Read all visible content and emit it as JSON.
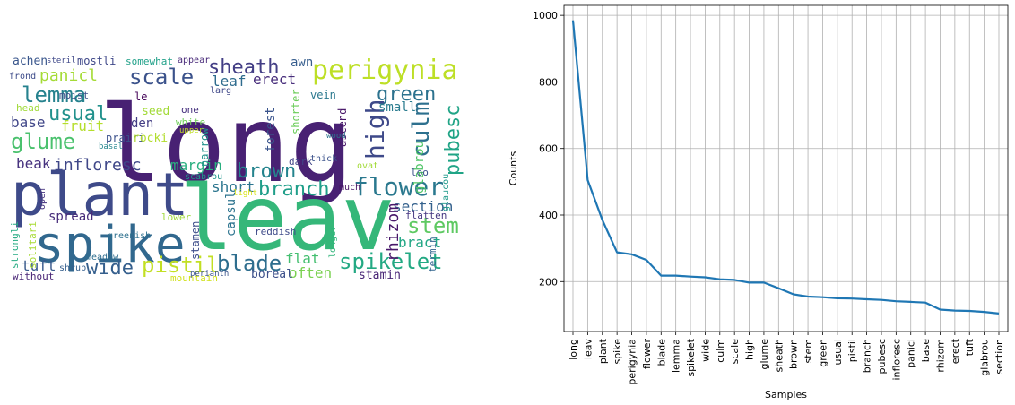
{
  "chart_data": [
    {
      "type": "wordcloud",
      "words": [
        {
          "text": "long",
          "color": "#482173"
        },
        {
          "text": "leav",
          "color": "#35b779"
        },
        {
          "text": "plant",
          "color": "#3e4a89"
        },
        {
          "text": "spike",
          "color": "#31688e"
        },
        {
          "text": "perigynia",
          "color": "#bddf26"
        },
        {
          "text": "sheath",
          "color": "#433e85"
        },
        {
          "text": "scale",
          "color": "#3b528b"
        },
        {
          "text": "lemma",
          "color": "#26828e"
        },
        {
          "text": "green",
          "color": "#2c728e"
        },
        {
          "text": "usual",
          "color": "#21918c"
        },
        {
          "text": "glume",
          "color": "#4ac16d"
        },
        {
          "text": "high",
          "color": "#3e4989"
        },
        {
          "text": "culm",
          "color": "#2d708e"
        },
        {
          "text": "pubesc",
          "color": "#20a486"
        },
        {
          "text": "flower",
          "color": "#2a788e"
        },
        {
          "text": "brown",
          "color": "#25848e"
        },
        {
          "text": "branch",
          "color": "#1f9e89"
        },
        {
          "text": "infloresc",
          "color": "#3f4788"
        },
        {
          "text": "margin",
          "color": "#29af7f"
        },
        {
          "text": "stem",
          "color": "#5ec962"
        },
        {
          "text": "section",
          "color": "#34618d"
        },
        {
          "text": "blade",
          "color": "#2e6e8e"
        },
        {
          "text": "spikelet",
          "color": "#23a983"
        },
        {
          "text": "pistil",
          "color": "#c2df23"
        },
        {
          "text": "wide",
          "color": "#355f8d"
        },
        {
          "text": "tuft",
          "color": "#38598c"
        },
        {
          "text": "panicl",
          "color": "#a5db36"
        },
        {
          "text": "base",
          "color": "#404688"
        },
        {
          "text": "beak",
          "color": "#46327e"
        },
        {
          "text": "erect",
          "color": "#472d7b"
        },
        {
          "text": "leaf",
          "color": "#2f6c8e"
        },
        {
          "text": "fruit",
          "color": "#b5de2b"
        },
        {
          "text": "bract",
          "color": "#22a785"
        },
        {
          "text": "flat",
          "color": "#44bf70"
        },
        {
          "text": "often",
          "color": "#7ad151"
        },
        {
          "text": "short",
          "color": "#2b758e"
        },
        {
          "text": "forest",
          "color": "#3a548c"
        },
        {
          "text": "rhizom",
          "color": "#48186a"
        },
        {
          "text": "glabrou",
          "color": "#52c569"
        },
        {
          "text": "slender",
          "color": "#481f70"
        },
        {
          "text": "awn",
          "color": "#365d8d"
        },
        {
          "text": "small",
          "color": "#297b8e"
        },
        {
          "text": "capsul",
          "color": "#2c738e"
        },
        {
          "text": "spread",
          "color": "#472c7a"
        },
        {
          "text": "stamin",
          "color": "#482576"
        },
        {
          "text": "boreal",
          "color": "#3c4f8a"
        },
        {
          "text": "achen",
          "color": "#39568c"
        },
        {
          "text": "den",
          "color": "#433d84"
        },
        {
          "text": "strongli",
          "color": "#25ab82"
        },
        {
          "text": "solitari",
          "color": "#a8db34"
        },
        {
          "text": "mountain",
          "color": "#d0e11c"
        },
        {
          "text": "prairi",
          "color": "#3b518b"
        },
        {
          "text": "without",
          "color": "#482475"
        },
        {
          "text": "stamen",
          "color": "#3d4d8a"
        },
        {
          "text": "narrow",
          "color": "#20928c"
        },
        {
          "text": "lower",
          "color": "#9fda3a"
        },
        {
          "text": "dark",
          "color": "#414487"
        },
        {
          "text": "ascend",
          "color": "#481769"
        },
        {
          "text": "shorter",
          "color": "#6ccd5a"
        },
        {
          "text": "vein",
          "color": "#2a788e"
        },
        {
          "text": "mostli",
          "color": "#3f4889"
        },
        {
          "text": "somewhat",
          "color": "#1fa088"
        },
        {
          "text": "appear",
          "color": "#482979"
        },
        {
          "text": "le",
          "color": "#450559"
        },
        {
          "text": "seed",
          "color": "#a2da37"
        },
        {
          "text": "rocki",
          "color": "#b2dd2d"
        },
        {
          "text": "white",
          "color": "#6ece58"
        },
        {
          "text": "one",
          "color": "#46307e"
        },
        {
          "text": "head",
          "color": "#a0da39"
        },
        {
          "text": "moist",
          "color": "#3d4e8a"
        },
        {
          "text": "frond",
          "color": "#3e4c8a"
        },
        {
          "text": "loo",
          "color": "#3b518b"
        },
        {
          "text": "flatten",
          "color": "#453781"
        },
        {
          "text": "termin",
          "color": "#32658e"
        },
        {
          "text": "glaucou",
          "color": "#1f9a8a"
        },
        {
          "text": "thick",
          "color": "#3b528b"
        },
        {
          "text": "ovat",
          "color": "#a2da37"
        },
        {
          "text": "much",
          "color": "#471365"
        },
        {
          "text": "longer",
          "color": "#31b57b"
        },
        {
          "text": "reddish",
          "color": "#3e4a89"
        },
        {
          "text": "greenish",
          "color": "#2d708e"
        },
        {
          "text": "meadow",
          "color": "#2e6d8e"
        },
        {
          "text": "perianth",
          "color": "#3a548c"
        },
        {
          "text": "shrub",
          "color": "#355f8d"
        },
        {
          "text": "scabrou",
          "color": "#1f968b"
        },
        {
          "text": "light",
          "color": "#d8e219"
        },
        {
          "text": "wood",
          "color": "#2c738e"
        },
        {
          "text": "upper",
          "color": "#c0df25"
        },
        {
          "text": "open",
          "color": "#46337f"
        },
        {
          "text": "steril",
          "color": "#3f4889"
        },
        {
          "text": "basal",
          "color": "#25858e"
        },
        {
          "text": "larg",
          "color": "#3f4788"
        }
      ]
    },
    {
      "type": "line",
      "x": [
        "long",
        "leav",
        "plant",
        "spike",
        "perigynia",
        "flower",
        "blade",
        "lemma",
        "spikelet",
        "wide",
        "culm",
        "scale",
        "high",
        "glume",
        "sheath",
        "brown",
        "stem",
        "green",
        "usual",
        "pistil",
        "branch",
        "pubesc",
        "infloresc",
        "panicl",
        "base",
        "rhizom",
        "erect",
        "tuft",
        "glabrou",
        "section"
      ],
      "y": [
        985,
        505,
        385,
        288,
        282,
        265,
        218,
        218,
        215,
        213,
        207,
        205,
        197,
        197,
        180,
        162,
        155,
        153,
        150,
        149,
        147,
        145,
        141,
        139,
        137,
        116,
        113,
        112,
        109,
        104
      ],
      "xlabel": "Samples",
      "ylabel": "Counts",
      "yticks": [
        200,
        400,
        600,
        800,
        1000
      ],
      "ylim": [
        50,
        1030
      ],
      "grid": true,
      "color": "#1f77b4"
    }
  ]
}
